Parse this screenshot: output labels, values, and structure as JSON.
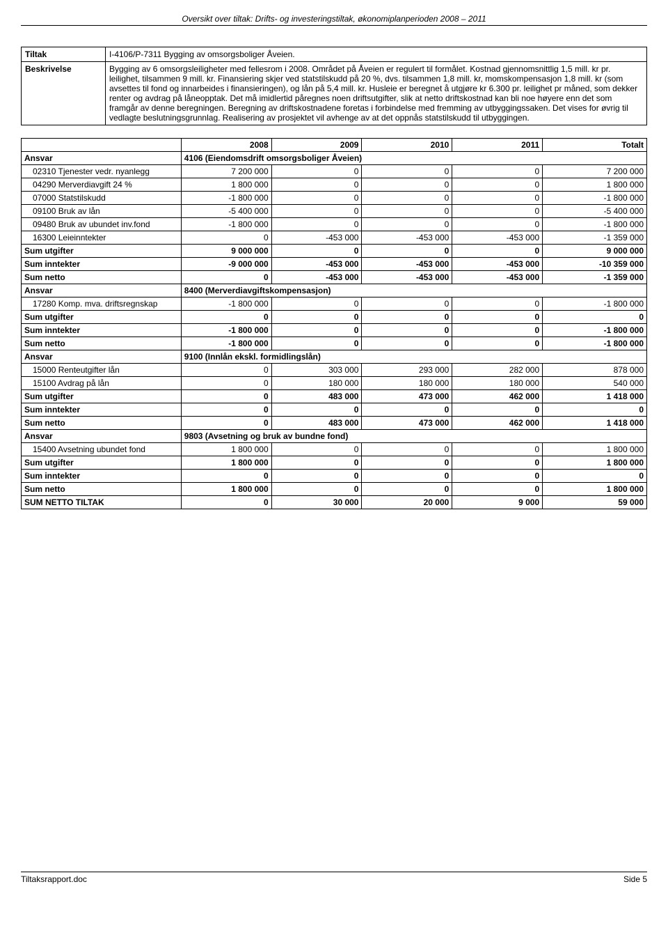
{
  "header": "Oversikt over tiltak: Drifts- og investeringstiltak, økonomiplanperioden 2008 – 2011",
  "tiltak": {
    "tiltak_label": "Tiltak",
    "tiltak_value": "I-4106/P-7311 Bygging av omsorgsboliger Åveien.",
    "beskrivelse_label": "Beskrivelse",
    "beskrivelse_value": "Bygging av 6 omsorgsleiligheter med fellesrom i 2008. Området på Åveien er regulert til formålet. Kostnad gjennomsnittlig 1,5 mill. kr pr. leilighet, tilsammen 9 mill. kr. Finansiering skjer ved statstilskudd på 20 %, dvs. tilsammen 1,8 mill. kr, momskompensasjon 1,8 mill. kr (som avsettes til fond og innarbeides i finansieringen), og lån på 5,4 mill. kr. Husleie er beregnet å utgjøre kr 6.300 pr. leilighet pr måned, som dekker renter og avdrag på låneopptak. Det må imidlertid påregnes noen driftsutgifter, slik at netto driftskostnad kan bli noe høyere enn det som framgår av denne beregningen. Beregning av driftskostnadene foretas i forbindelse med fremming av utbyggingssaken. Det vises for øvrig til vedlagte beslutningsgrunnlag. Realisering av prosjektet vil avhenge av at det oppnås statstilskudd til utbyggingen."
  },
  "columns": [
    "",
    "2008",
    "2009",
    "2010",
    "2011",
    "Totalt"
  ],
  "sections": [
    {
      "ansvar_label": "Ansvar",
      "ansvar_text": "4106 (Eiendomsdrift omsorgsboliger Åveien)",
      "rows": [
        {
          "label": "02310 Tjenester vedr. nyanlegg",
          "indent": true,
          "bold": false,
          "c": [
            "7 200 000",
            "0",
            "0",
            "0",
            "7 200 000"
          ]
        },
        {
          "label": "04290 Merverdiavgift 24 %",
          "indent": true,
          "bold": false,
          "c": [
            "1 800 000",
            "0",
            "0",
            "0",
            "1 800 000"
          ]
        },
        {
          "label": "07000 Statstilskudd",
          "indent": true,
          "bold": false,
          "c": [
            "-1 800 000",
            "0",
            "0",
            "0",
            "-1 800 000"
          ]
        },
        {
          "label": "09100 Bruk av lån",
          "indent": true,
          "bold": false,
          "c": [
            "-5 400 000",
            "0",
            "0",
            "0",
            "-5 400 000"
          ]
        },
        {
          "label": "09480 Bruk av ubundet inv.fond",
          "indent": true,
          "bold": false,
          "c": [
            "-1 800 000",
            "0",
            "0",
            "0",
            "-1 800 000"
          ]
        },
        {
          "label": "16300 Leieinntekter",
          "indent": true,
          "bold": false,
          "c": [
            "0",
            "-453 000",
            "-453 000",
            "-453 000",
            "-1 359 000"
          ]
        },
        {
          "label": "Sum utgifter",
          "indent": false,
          "bold": true,
          "c": [
            "9 000 000",
            "0",
            "0",
            "0",
            "9 000 000"
          ]
        },
        {
          "label": "Sum inntekter",
          "indent": false,
          "bold": true,
          "c": [
            "-9 000 000",
            "-453 000",
            "-453 000",
            "-453 000",
            "-10 359 000"
          ]
        },
        {
          "label": "Sum netto",
          "indent": false,
          "bold": true,
          "c": [
            "0",
            "-453 000",
            "-453 000",
            "-453 000",
            "-1 359 000"
          ]
        }
      ]
    },
    {
      "ansvar_label": "Ansvar",
      "ansvar_text": "8400 (Merverdiavgiftskompensasjon)",
      "rows": [
        {
          "label": "17280 Komp. mva. driftsregnskap",
          "indent": true,
          "bold": false,
          "c": [
            "-1 800 000",
            "0",
            "0",
            "0",
            "-1 800 000"
          ]
        },
        {
          "label": "Sum utgifter",
          "indent": false,
          "bold": true,
          "c": [
            "0",
            "0",
            "0",
            "0",
            "0"
          ]
        },
        {
          "label": "Sum inntekter",
          "indent": false,
          "bold": true,
          "c": [
            "-1 800 000",
            "0",
            "0",
            "0",
            "-1 800 000"
          ]
        },
        {
          "label": "Sum netto",
          "indent": false,
          "bold": true,
          "c": [
            "-1 800 000",
            "0",
            "0",
            "0",
            "-1 800 000"
          ]
        }
      ]
    },
    {
      "ansvar_label": "Ansvar",
      "ansvar_text": "9100 (Innlån ekskl. formidlingslån)",
      "rows": [
        {
          "label": "15000 Renteutgifter lån",
          "indent": true,
          "bold": false,
          "c": [
            "0",
            "303 000",
            "293 000",
            "282 000",
            "878 000"
          ]
        },
        {
          "label": "15100 Avdrag på lån",
          "indent": true,
          "bold": false,
          "c": [
            "0",
            "180 000",
            "180 000",
            "180 000",
            "540 000"
          ]
        },
        {
          "label": "Sum utgifter",
          "indent": false,
          "bold": true,
          "c": [
            "0",
            "483 000",
            "473 000",
            "462 000",
            "1 418 000"
          ]
        },
        {
          "label": "Sum inntekter",
          "indent": false,
          "bold": true,
          "c": [
            "0",
            "0",
            "0",
            "0",
            "0"
          ]
        },
        {
          "label": "Sum netto",
          "indent": false,
          "bold": true,
          "c": [
            "0",
            "483 000",
            "473 000",
            "462 000",
            "1 418 000"
          ]
        }
      ]
    },
    {
      "ansvar_label": "Ansvar",
      "ansvar_text": "9803 (Avsetning og bruk av bundne fond)",
      "rows": [
        {
          "label": "15400 Avsetning ubundet fond",
          "indent": true,
          "bold": false,
          "c": [
            "1 800 000",
            "0",
            "0",
            "0",
            "1 800 000"
          ]
        },
        {
          "label": "Sum utgifter",
          "indent": false,
          "bold": true,
          "c": [
            "1 800 000",
            "0",
            "0",
            "0",
            "1 800 000"
          ]
        },
        {
          "label": "Sum inntekter",
          "indent": false,
          "bold": true,
          "c": [
            "0",
            "0",
            "0",
            "0",
            "0"
          ]
        },
        {
          "label": "Sum netto",
          "indent": false,
          "bold": true,
          "c": [
            "1 800 000",
            "0",
            "0",
            "0",
            "1 800 000"
          ]
        }
      ]
    }
  ],
  "total_row": {
    "label": "SUM NETTO TILTAK",
    "c": [
      "0",
      "30 000",
      "20 000",
      "9 000",
      "59 000"
    ]
  },
  "footer": {
    "left": "Tiltaksrapport.doc",
    "right": "Side 5"
  },
  "style": {
    "col_widths": [
      "230px",
      "130px",
      "130px",
      "130px",
      "130px",
      "150px"
    ]
  }
}
